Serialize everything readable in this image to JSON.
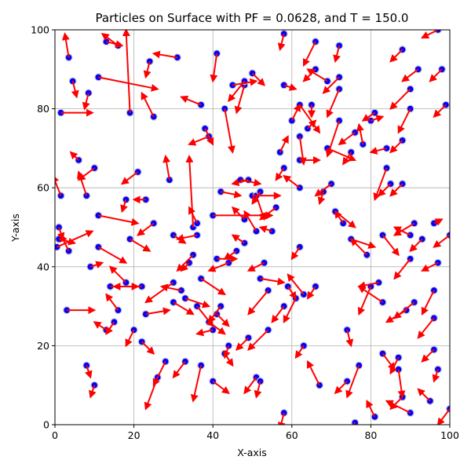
{
  "chart_data": {
    "type": "scatter",
    "title": "Particles on Surface with PF = 0.0628, and T = 150.0",
    "xlabel": "X-axis",
    "ylabel": "Y-axis",
    "xlim": [
      0,
      100
    ],
    "ylim": [
      0,
      100
    ],
    "xticks": [
      0,
      20,
      40,
      60,
      80,
      100
    ],
    "yticks": [
      0,
      20,
      40,
      60,
      80,
      100
    ],
    "grid": true,
    "colors": {
      "particle": "#0000ff",
      "edge": "#d0d0d0",
      "arrow": "#ff0000",
      "grid": "#b0b0b0"
    },
    "particles": [
      [
        0.5,
        45,
        9,
        4
      ],
      [
        1,
        50,
        1,
        -3
      ],
      [
        1.5,
        58,
        -2,
        5
      ],
      [
        1.5,
        79,
        8,
        0
      ],
      [
        1,
        47,
        4,
        -1
      ],
      [
        3,
        29,
        7,
        0
      ],
      [
        3.5,
        44,
        -2,
        4
      ],
      [
        3.5,
        93,
        -1,
        6
      ],
      [
        4.5,
        87,
        1,
        -4
      ],
      [
        6,
        67,
        -2,
        2
      ],
      [
        8,
        15,
        1,
        -3
      ],
      [
        8,
        58,
        -2,
        6
      ],
      [
        8.5,
        84,
        -1,
        -4
      ],
      [
        9,
        40,
        3,
        1
      ],
      [
        10,
        65,
        -4,
        -3
      ],
      [
        10,
        10,
        -1,
        -3
      ],
      [
        11,
        45,
        7,
        -4
      ],
      [
        11,
        53,
        10,
        -2
      ],
      [
        11,
        88,
        15,
        -3
      ],
      [
        13,
        97,
        4,
        -1
      ],
      [
        13,
        24,
        -3,
        2
      ],
      [
        14,
        35,
        7,
        0
      ],
      [
        15,
        26,
        -2,
        -3
      ],
      [
        16,
        29,
        -3,
        4
      ],
      [
        16,
        96,
        -4,
        3
      ],
      [
        18,
        36,
        -4,
        4
      ],
      [
        18,
        57,
        -1,
        -3
      ],
      [
        19,
        47,
        5,
        -3
      ],
      [
        19,
        79,
        -1,
        21
      ],
      [
        20,
        24,
        -2,
        -4
      ],
      [
        21,
        64,
        -4,
        -3
      ],
      [
        22,
        21,
        3,
        -3
      ],
      [
        22,
        35,
        -7,
        0
      ],
      [
        23,
        28,
        6,
        1
      ],
      [
        23,
        57,
        -3,
        0
      ],
      [
        24,
        92,
        -1,
        -4
      ],
      [
        25,
        51,
        -4,
        -3
      ],
      [
        25,
        78,
        -3,
        6
      ],
      [
        26,
        12,
        -3,
        -8
      ],
      [
        28,
        16,
        -3,
        -6
      ],
      [
        29,
        62,
        -1,
        6
      ],
      [
        30,
        48,
        3,
        -2
      ],
      [
        30,
        36,
        -7,
        -5
      ],
      [
        30,
        31,
        5,
        -3
      ],
      [
        31,
        93,
        -6,
        1
      ],
      [
        32,
        34,
        -5,
        1
      ],
      [
        33,
        32,
        6,
        -2
      ],
      [
        33,
        16,
        -3,
        -4
      ],
      [
        34,
        41,
        -2,
        -2
      ],
      [
        35,
        50,
        -1,
        18
      ],
      [
        35,
        43,
        -4,
        -4
      ],
      [
        36,
        48,
        -5,
        -1
      ],
      [
        36,
        30,
        4,
        -5
      ],
      [
        36,
        51,
        -2,
        4
      ],
      [
        37,
        37,
        6,
        -4
      ],
      [
        37,
        15,
        -2,
        -9
      ],
      [
        37,
        81,
        -5,
        2
      ],
      [
        38,
        75,
        2,
        -4
      ],
      [
        39,
        26,
        4,
        -3
      ],
      [
        39,
        73,
        -5,
        -2
      ],
      [
        40,
        24,
        -4,
        -1
      ],
      [
        40,
        11,
        4,
        -3
      ],
      [
        40,
        53,
        15,
        0
      ],
      [
        41,
        94,
        -1,
        -7
      ],
      [
        41,
        42,
        5,
        0
      ],
      [
        41,
        28,
        3,
        -3
      ],
      [
        42,
        30,
        -3,
        -4
      ],
      [
        42,
        59,
        5,
        -1
      ],
      [
        43,
        18,
        2,
        -3
      ],
      [
        43,
        80,
        2,
        -11
      ],
      [
        44,
        20,
        -1,
        -3
      ],
      [
        44,
        41,
        -5,
        -2
      ],
      [
        45,
        86,
        6,
        1
      ],
      [
        46,
        44,
        -3,
        -2
      ],
      [
        47,
        62,
        5,
        -1
      ],
      [
        48,
        46,
        -3,
        2
      ],
      [
        48,
        52,
        -3,
        3
      ],
      [
        48,
        86,
        -2,
        -7
      ],
      [
        48,
        87,
        -4,
        -5
      ],
      [
        49,
        22,
        -3,
        -3
      ],
      [
        49,
        62,
        -4,
        -1
      ],
      [
        50,
        58,
        7,
        0
      ],
      [
        50,
        89,
        3,
        -3
      ],
      [
        51,
        12,
        -3,
        -4
      ],
      [
        51,
        49,
        -3,
        5
      ],
      [
        51,
        58,
        2,
        -6
      ],
      [
        52,
        11,
        -1,
        -4
      ],
      [
        52,
        37,
        6,
        -1
      ],
      [
        52,
        59,
        -2,
        -3
      ],
      [
        53,
        41,
        -4,
        -2
      ],
      [
        54,
        34,
        -5,
        -6
      ],
      [
        54,
        24,
        -5,
        -5
      ],
      [
        55,
        49,
        -3,
        1
      ],
      [
        56,
        55,
        -4,
        -3
      ],
      [
        57,
        69,
        2,
        4
      ],
      [
        58,
        65,
        -2,
        -3
      ],
      [
        58,
        86,
        3,
        -1
      ],
      [
        58,
        99,
        -1,
        -4
      ],
      [
        58,
        30,
        -3,
        -4
      ],
      [
        58,
        3,
        -1,
        -4
      ],
      [
        59,
        35,
        2,
        -3
      ],
      [
        60,
        77,
        2,
        4
      ],
      [
        61,
        32,
        -3,
        -6
      ],
      [
        62,
        67,
        5,
        0
      ],
      [
        62,
        73,
        1,
        -7
      ],
      [
        62,
        81,
        5,
        -7
      ],
      [
        62,
        60,
        -4,
        3
      ],
      [
        62,
        45,
        -2,
        -3
      ],
      [
        63,
        33,
        -4,
        5
      ],
      [
        63,
        20,
        -2,
        -3
      ],
      [
        64,
        75,
        2,
        2
      ],
      [
        65,
        81,
        0,
        -3
      ],
      [
        66,
        35,
        -2,
        -3
      ],
      [
        66,
        97,
        -3,
        -6
      ],
      [
        66,
        90,
        -3,
        -3
      ],
      [
        67,
        10,
        -3,
        6
      ],
      [
        68,
        59,
        -1,
        -3
      ],
      [
        69,
        70,
        7,
        -3
      ],
      [
        69,
        87,
        -5,
        3
      ],
      [
        70,
        61,
        -4,
        -3
      ],
      [
        71,
        54,
        5,
        -4
      ],
      [
        72,
        77,
        -3,
        -9
      ],
      [
        72,
        85,
        -3,
        -7
      ],
      [
        72,
        88,
        -4,
        -4
      ],
      [
        72,
        96,
        -1,
        -4
      ],
      [
        73,
        51,
        -2,
        3
      ],
      [
        74,
        11,
        -3,
        -3
      ],
      [
        74,
        24,
        1,
        -4
      ],
      [
        75,
        47,
        6,
        -2
      ],
      [
        75,
        69,
        -2,
        -3
      ],
      [
        76,
        0.5,
        -2,
        -3
      ],
      [
        76,
        74,
        -4,
        -3
      ],
      [
        77,
        15,
        -3,
        -8
      ],
      [
        78,
        71,
        -1,
        5
      ],
      [
        79,
        43,
        -4,
        4
      ],
      [
        80,
        35,
        -3,
        -7
      ],
      [
        80,
        77,
        3,
        1
      ],
      [
        81,
        2,
        -2,
        4
      ],
      [
        81,
        79,
        -3,
        -2
      ],
      [
        82,
        36,
        -5,
        -1
      ],
      [
        83,
        18,
        3,
        -4
      ],
      [
        83,
        31,
        -6,
        4
      ],
      [
        83,
        48,
        4,
        -5
      ],
      [
        84,
        65,
        -3,
        -8
      ],
      [
        84,
        70,
        -4,
        -1
      ],
      [
        85,
        61,
        -3,
        -3
      ],
      [
        87,
        17,
        -2,
        -4
      ],
      [
        87,
        14,
        1,
        -7
      ],
      [
        88,
        61,
        -3,
        -3
      ],
      [
        88,
        72,
        -3,
        -3
      ],
      [
        88,
        7,
        -3,
        -3
      ],
      [
        88,
        95,
        -3,
        -3
      ],
      [
        89,
        29,
        -5,
        -3
      ],
      [
        90,
        3,
        -6,
        3
      ],
      [
        90,
        42,
        -4,
        -5
      ],
      [
        90,
        48,
        -4,
        2
      ],
      [
        90,
        80,
        -3,
        -6
      ],
      [
        90,
        85,
        -5,
        -5
      ],
      [
        91,
        51,
        -5,
        -3
      ],
      [
        91,
        31,
        -5,
        -4
      ],
      [
        92,
        90,
        -4,
        -3
      ],
      [
        93,
        47,
        -3,
        -3
      ],
      [
        95,
        6,
        -3,
        3
      ],
      [
        96,
        19,
        -3,
        -3
      ],
      [
        96,
        27,
        -4,
        -5
      ],
      [
        96,
        34,
        -3,
        -6
      ],
      [
        96,
        51,
        2,
        1
      ],
      [
        97,
        14,
        -1,
        -3
      ],
      [
        97,
        41,
        -4,
        -2
      ],
      [
        97,
        100,
        -4,
        -2
      ],
      [
        98,
        90,
        -3,
        -3
      ],
      [
        99,
        81,
        -3,
        -3
      ],
      [
        100,
        4,
        -3,
        -4
      ],
      [
        100,
        48,
        -4,
        -3
      ]
    ]
  }
}
